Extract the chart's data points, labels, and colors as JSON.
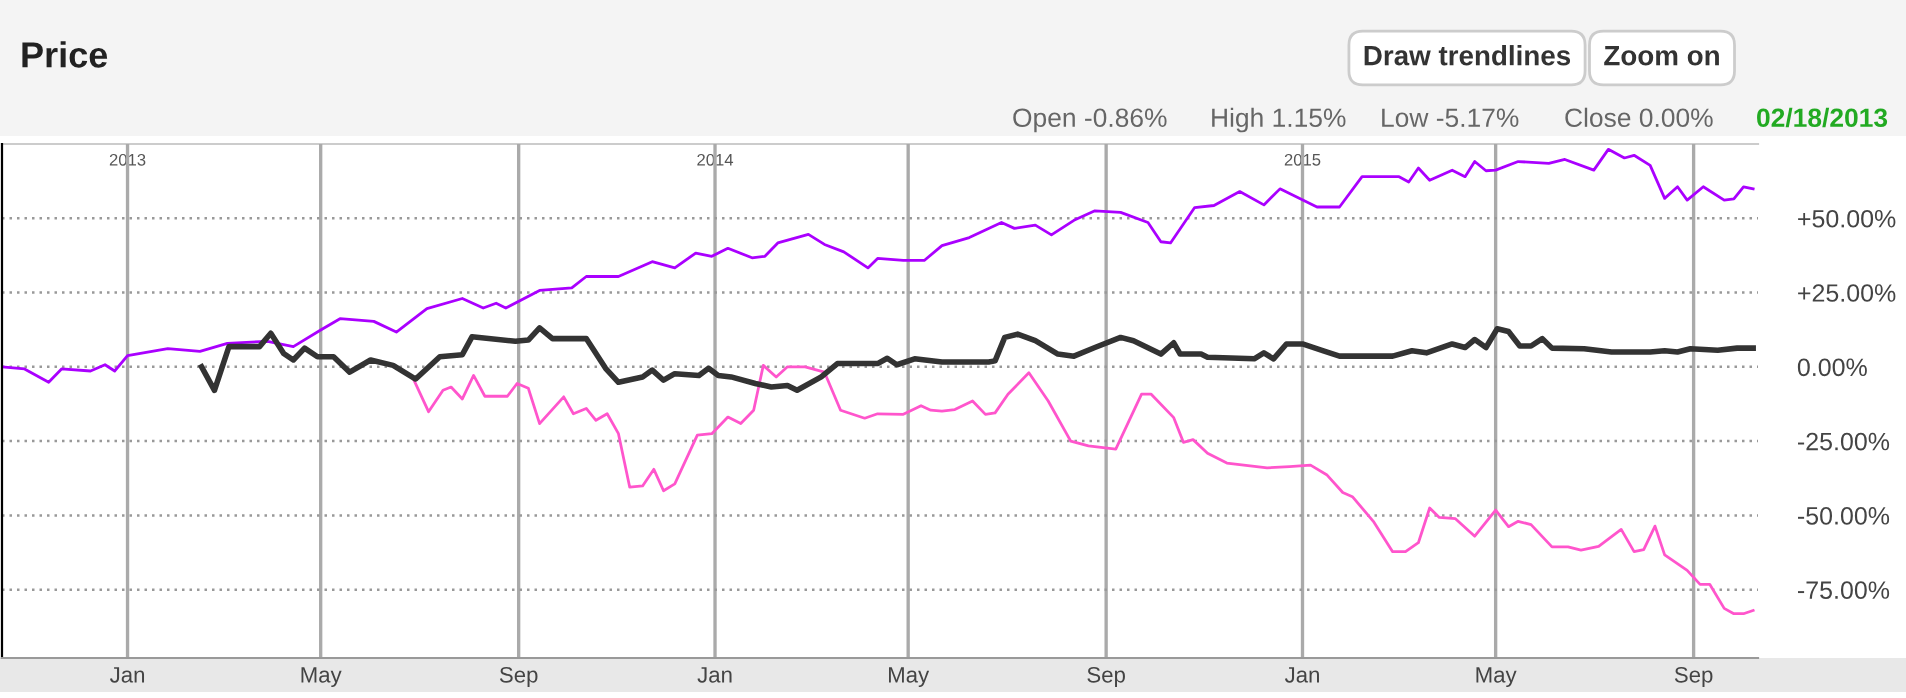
{
  "chart_data": {
    "type": "line",
    "title": "Price",
    "annotations": [
      "Draw trendlines",
      "Zoom on",
      "Open -0.86%",
      "High 1.15%",
      "Low -5.17%",
      "Close 0.00%",
      "02/18/2013"
    ],
    "xlim": [
      "2012-10-15",
      "2015-10-11"
    ],
    "xticks": [
      {
        "value": "2013-01-01",
        "label": "Jan"
      },
      {
        "value": "2013-05-01",
        "label": "May"
      },
      {
        "value": "2013-09-01",
        "label": "Sep"
      },
      {
        "value": "2014-01-01",
        "label": "Jan"
      },
      {
        "value": "2014-05-01",
        "label": "May"
      },
      {
        "value": "2014-09-01",
        "label": "Sep"
      },
      {
        "value": "2015-01-01",
        "label": "Jan"
      },
      {
        "value": "2015-05-01",
        "label": "May"
      },
      {
        "value": "2015-09-01",
        "label": "Sep"
      }
    ],
    "x2lim": [
      "2012-10-15",
      "2015-10-11"
    ],
    "x2ticks": [
      {
        "value": "2013-01-01",
        "label": "2013"
      },
      {
        "value": "2014-01-01",
        "label": "2014"
      },
      {
        "value": "2015-01-01",
        "label": "2015"
      }
    ],
    "ylim": [
      -98,
      75
    ],
    "yticks": [
      {
        "value": 50,
        "label": "+50.00%"
      },
      {
        "value": 25,
        "label": "+25.00%"
      },
      {
        "value": 0,
        "label": "0.00%"
      },
      {
        "value": -25,
        "label": "-25.00%"
      },
      {
        "value": -50,
        "label": "-50.00%"
      },
      {
        "value": -75,
        "label": "-75.00%"
      }
    ],
    "grid": true,
    "marker": "none",
    "line_style": "solid",
    "series": [
      {
        "color": "#aa00ff",
        "x": [
          "2012-10-15",
          "2012-10-29",
          "2012-11-13",
          "2012-11-21",
          "2012-12-09",
          "2012-12-18",
          "2012-12-24",
          "2013-01-01",
          "2013-01-26",
          "2013-02-15",
          "2013-03-04",
          "2013-03-29",
          "2013-04-14",
          "2013-05-01",
          "2013-05-13",
          "2013-06-03",
          "2013-06-17",
          "2013-07-06",
          "2013-07-28",
          "2013-08-10",
          "2013-08-18",
          "2013-08-24",
          "2013-09-14",
          "2013-10-04",
          "2013-10-13",
          "2013-11-02",
          "2013-11-23",
          "2013-12-07",
          "2013-12-20",
          "2013-12-30",
          "2014-01-09",
          "2014-01-24",
          "2014-02-01",
          "2014-02-09",
          "2014-02-28",
          "2014-03-10",
          "2014-03-22",
          "2014-04-06",
          "2014-04-12",
          "2014-04-28",
          "2014-05-11",
          "2014-05-22",
          "2014-06-08",
          "2014-06-28",
          "2014-07-06",
          "2014-07-19",
          "2014-07-29",
          "2014-08-12",
          "2014-08-25",
          "2014-09-10",
          "2014-09-27",
          "2014-10-05",
          "2014-10-11",
          "2014-10-26",
          "2014-11-07",
          "2014-11-23",
          "2014-12-08",
          "2014-12-18",
          "2015-01-10",
          "2015-01-24",
          "2015-02-07",
          "2015-03-02",
          "2015-03-08",
          "2015-03-14",
          "2015-03-21",
          "2015-04-04",
          "2015-04-12",
          "2015-04-18",
          "2015-04-25",
          "2015-05-01",
          "2015-05-15",
          "2015-06-03",
          "2015-06-13",
          "2015-07-01",
          "2015-07-10",
          "2015-07-20",
          "2015-07-26",
          "2015-08-05",
          "2015-08-14",
          "2015-08-22",
          "2015-08-28",
          "2015-09-07",
          "2015-09-20",
          "2015-09-26",
          "2015-10-02",
          "2015-10-08"
        ],
        "values": [
          0,
          -0.7,
          -5.2,
          -0.7,
          -1.4,
          0.7,
          -1.4,
          3.8,
          6.1,
          5.2,
          7.9,
          8.6,
          6.8,
          12.4,
          16.2,
          15.3,
          11.7,
          19.6,
          23.0,
          19.8,
          21.4,
          19.8,
          25.7,
          26.6,
          30.4,
          30.4,
          35.4,
          33.3,
          38.3,
          37.2,
          39.9,
          36.7,
          37.2,
          41.7,
          44.6,
          41.2,
          38.7,
          33.3,
          36.5,
          35.8,
          35.8,
          40.8,
          43.5,
          48.6,
          46.6,
          47.7,
          44.4,
          49.3,
          52.5,
          52.0,
          48.6,
          42.1,
          41.7,
          53.6,
          54.3,
          59.0,
          54.5,
          59.9,
          53.8,
          53.8,
          64.0,
          64.0,
          62.2,
          66.9,
          62.8,
          66.2,
          64.0,
          69.1,
          66.0,
          66.2,
          69.1,
          68.5,
          69.8,
          66.2,
          73.2,
          70.3,
          71.2,
          67.8,
          56.7,
          60.6,
          56.1,
          60.6,
          56.1,
          56.5,
          60.6,
          59.9
        ]
      },
      {
        "color": "#ff55cc",
        "x": [
          "2013-06-17",
          "2013-06-27",
          "2013-07-07",
          "2013-07-16",
          "2013-07-21",
          "2013-07-28",
          "2013-08-04",
          "2013-08-11",
          "2013-08-25",
          "2013-08-31",
          "2013-09-07",
          "2013-09-14",
          "2013-09-29",
          "2013-10-05",
          "2013-10-13",
          "2013-10-19",
          "2013-10-26",
          "2013-11-02",
          "2013-11-09",
          "2013-11-17",
          "2013-11-24",
          "2013-11-30",
          "2013-12-07",
          "2013-12-21",
          "2013-12-30",
          "2014-01-09",
          "2014-01-17",
          "2014-01-25",
          "2014-01-31",
          "2014-02-08",
          "2014-02-15",
          "2014-02-26",
          "2014-03-10",
          "2014-03-20",
          "2014-04-04",
          "2014-04-12",
          "2014-04-28",
          "2014-05-09",
          "2014-05-15",
          "2014-05-22",
          "2014-05-30",
          "2014-06-10",
          "2014-06-18",
          "2014-06-24",
          "2014-07-02",
          "2014-07-15",
          "2014-07-27",
          "2014-08-10",
          "2014-08-21",
          "2014-09-07",
          "2014-09-23",
          "2014-09-29",
          "2014-10-13",
          "2014-10-19",
          "2014-10-25",
          "2014-11-03",
          "2014-11-15",
          "2014-12-10",
          "2014-12-24",
          "2015-01-06",
          "2015-01-16",
          "2015-01-26",
          "2015-02-01",
          "2015-02-14",
          "2015-02-26",
          "2015-03-06",
          "2015-03-14",
          "2015-03-21",
          "2015-03-27",
          "2015-04-06",
          "2015-04-18",
          "2015-05-01",
          "2015-05-09",
          "2015-05-15",
          "2015-05-23",
          "2015-06-05",
          "2015-06-15",
          "2015-06-23",
          "2015-07-04",
          "2015-07-18",
          "2015-07-26",
          "2015-08-01",
          "2015-08-08",
          "2015-08-14",
          "2015-08-28",
          "2015-09-05",
          "2015-09-11",
          "2015-09-20",
          "2015-09-26",
          "2015-10-02",
          "2015-10-08"
        ],
        "values": [
          0,
          -3.4,
          -15.1,
          -7.9,
          -6.8,
          -10.8,
          -2.9,
          -9.9,
          -9.9,
          -5.6,
          -7.2,
          -19.1,
          -10.1,
          -15.8,
          -14.0,
          -18.0,
          -15.8,
          -22.5,
          -40.5,
          -40.1,
          -34.5,
          -41.7,
          -39.4,
          -23.0,
          -22.5,
          -16.9,
          -19.1,
          -14.6,
          0.5,
          -3.4,
          0,
          0,
          -1.8,
          -14.6,
          -17.3,
          -15.8,
          -16.0,
          -13.1,
          -14.6,
          -14.9,
          -14.4,
          -11.5,
          -16.0,
          -15.5,
          -9.2,
          -2.0,
          -11.5,
          -25.0,
          -26.6,
          -27.7,
          -9.2,
          -9.2,
          -17.1,
          -25.4,
          -24.5,
          -29.1,
          -32.4,
          -34.0,
          -33.6,
          -33.1,
          -36.3,
          -42.3,
          -43.7,
          -52.0,
          -62.2,
          -62.2,
          -59.2,
          -47.5,
          -50.7,
          -51.1,
          -57.0,
          -48.2,
          -53.8,
          -52.0,
          -53.1,
          -60.6,
          -60.6,
          -61.7,
          -60.4,
          -54.7,
          -62.2,
          -61.5,
          -53.6,
          -63.3,
          -68.5,
          -73.2,
          -73.2,
          -81.3,
          -83.1,
          -83.1,
          -82.0
        ]
      },
      {
        "color": "#333333",
        "x": [
          "2013-02-16",
          "2013-02-24",
          "2013-03-05",
          "2013-03-24",
          "2013-03-31",
          "2013-04-08",
          "2013-04-14",
          "2013-04-21",
          "2013-04-29",
          "2013-05-09",
          "2013-05-19",
          "2013-06-01",
          "2013-06-15",
          "2013-06-29",
          "2013-07-14",
          "2013-07-28",
          "2013-08-03",
          "2013-08-30",
          "2013-09-07",
          "2013-09-14",
          "2013-09-22",
          "2013-10-13",
          "2013-10-25",
          "2013-11-02",
          "2013-11-17",
          "2013-11-23",
          "2013-11-30",
          "2013-12-07",
          "2013-12-22",
          "2013-12-28",
          "2014-01-03",
          "2014-01-11",
          "2014-01-26",
          "2014-02-05",
          "2014-02-15",
          "2014-02-21",
          "2014-03-08",
          "2014-03-18",
          "2014-04-12",
          "2014-04-18",
          "2014-04-24",
          "2014-05-05",
          "2014-05-22",
          "2014-06-20",
          "2014-06-24",
          "2014-06-30",
          "2014-07-08",
          "2014-07-19",
          "2014-08-02",
          "2014-08-12",
          "2014-08-25",
          "2014-09-10",
          "2014-09-18",
          "2014-10-05",
          "2014-10-13",
          "2014-10-17",
          "2014-10-30",
          "2014-11-03",
          "2014-12-02",
          "2014-12-08",
          "2014-12-14",
          "2014-12-22",
          "2015-01-01",
          "2015-01-14",
          "2015-01-24",
          "2015-02-26",
          "2015-03-10",
          "2015-03-19",
          "2015-04-04",
          "2015-04-12",
          "2015-04-18",
          "2015-04-25",
          "2015-05-02",
          "2015-05-09",
          "2015-05-16",
          "2015-05-23",
          "2015-05-30",
          "2015-06-05",
          "2015-06-25",
          "2015-07-12",
          "2015-08-05",
          "2015-08-14",
          "2015-08-22",
          "2015-08-30",
          "2015-09-16",
          "2015-09-28",
          "2015-10-08"
        ],
        "values": [
          0,
          -7.9,
          6.8,
          6.8,
          11.3,
          4.5,
          2.3,
          6.3,
          3.4,
          3.4,
          -1.8,
          2.3,
          0.5,
          -4.1,
          3.4,
          4.1,
          10.1,
          8.6,
          9.0,
          13.1,
          9.5,
          9.5,
          -0.5,
          -5.2,
          -3.4,
          -1.1,
          -4.5,
          -2.3,
          -2.9,
          -0.5,
          -2.9,
          -3.4,
          -5.6,
          -6.8,
          -6.3,
          -7.9,
          -3.4,
          1.1,
          1.1,
          2.9,
          0.7,
          2.7,
          1.6,
          1.6,
          2.0,
          9.9,
          11.0,
          8.8,
          4.3,
          3.6,
          6.5,
          9.9,
          8.8,
          4.3,
          8.1,
          4.3,
          4.3,
          3.2,
          2.7,
          4.7,
          2.7,
          7.7,
          7.7,
          5.4,
          3.6,
          3.6,
          5.4,
          4.7,
          7.7,
          6.5,
          9.2,
          6.5,
          12.8,
          11.9,
          7.0,
          7.0,
          9.5,
          6.3,
          6.1,
          5.0,
          5.0,
          5.4,
          5.0,
          6.1,
          5.6,
          6.3,
          6.3
        ]
      }
    ]
  }
}
